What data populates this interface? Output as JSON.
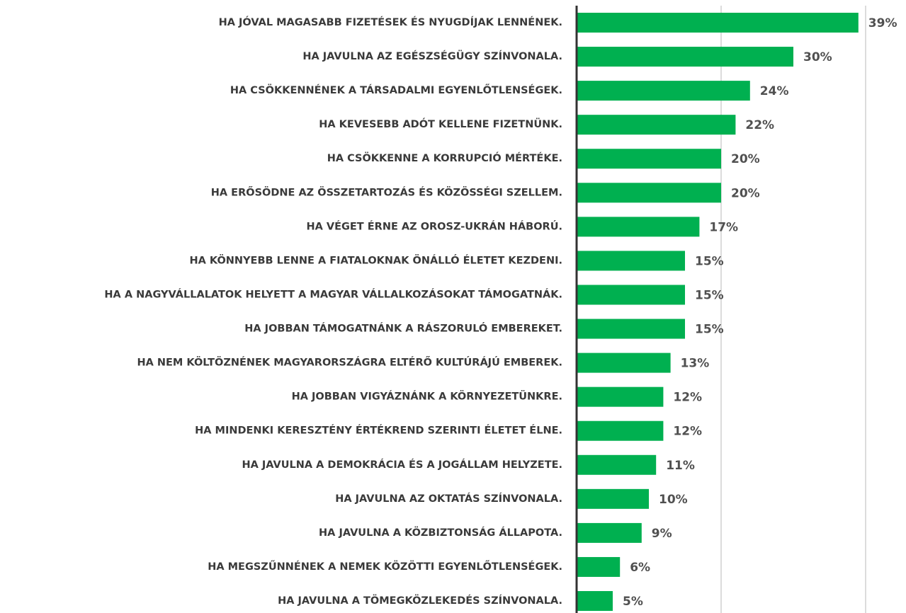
{
  "chart_data": {
    "type": "bar",
    "orientation": "horizontal",
    "categories": [
      "HA JÓVAL MAGASABB FIZETÉSEK ÉS NYUGDÍJAK LENNÉNEK.",
      "HA JAVULNA AZ EGÉSZSÉGÜGY SZÍNVONALA.",
      "HA CSÖKKENNÉNEK A TÁRSADALMI EGYENLŐTLENSÉGEK.",
      "HA KEVESEBB ADÓT KELLENE FIZETNÜNK.",
      "HA CSÖKKENNE A KORRUPCIÓ MÉRTÉKE.",
      "HA ERŐSÖDNE AZ ÖSSZETARTOZÁS ÉS KÖZÖSSÉGI SZELLEM.",
      "HA VÉGET ÉRNE AZ OROSZ-UKRÁN HÁBORÚ.",
      "HA KÖNNYEBB LENNE A FIATALOKNAK ÖNÁLLÓ ÉLETET KEZDENI.",
      "HA A NAGYVÁLLALATOK HELYETT A MAGYAR VÁLLALKOZÁSOKAT TÁMOGATNÁK.",
      "HA JOBBAN TÁMOGATNÁNK A RÁSZORULÓ EMBEREKET.",
      "HA NEM KÖLTÖZNÉNEK MAGYARORSZÁGRA ELTÉRŐ KULTÚRÁJÚ EMBEREK.",
      "HA JOBBAN VIGYÁZNÁNK A KÖRNYEZETÜNKRE.",
      "HA MINDENKI KERESZTÉNY ÉRTÉKREND SZERINTI ÉLETET ÉLNE.",
      "HA JAVULNA A DEMOKRÁCIA ÉS A JOGÁLLAM HELYZETE.",
      "HA JAVULNA AZ OKTATÁS SZÍNVONALA.",
      "HA JAVULNA A KÖZBIZTONSÁG ÁLLAPOTA.",
      "HA MEGSZŰNNÉNEK A NEMEK KÖZÖTTI EGYENLŐTLENSÉGEK.",
      "HA JAVULNA A TÖMEGKÖZLEKEDÉS SZÍNVONALA."
    ],
    "values": [
      39,
      30,
      24,
      22,
      20,
      20,
      17,
      15,
      15,
      15,
      13,
      12,
      12,
      11,
      10,
      9,
      6,
      5
    ],
    "value_labels": [
      "39%",
      "30%",
      "24%",
      "22%",
      "20%",
      "20%",
      "17%",
      "15%",
      "15%",
      "15%",
      "13%",
      "12%",
      "12%",
      "11%",
      "10%",
      "9%",
      "6%",
      "5%"
    ],
    "color": "#00b050",
    "xlim": [
      0,
      40
    ],
    "xticks": [
      0,
      20,
      40
    ],
    "grid": true
  }
}
